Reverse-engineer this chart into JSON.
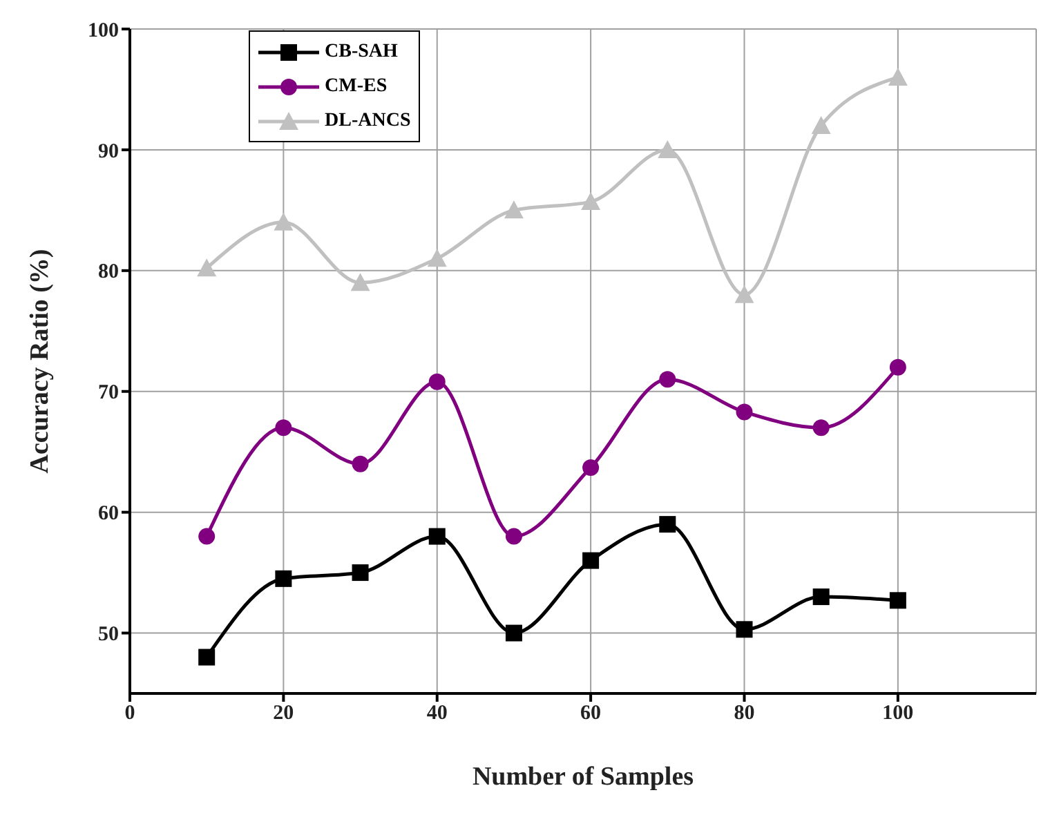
{
  "chart_data": {
    "type": "line",
    "xlabel": "Number of Samples",
    "ylabel": "Accuracy Ratio (%)",
    "x": [
      10,
      20,
      30,
      40,
      50,
      60,
      70,
      80,
      90,
      100
    ],
    "xlim": [
      0,
      118
    ],
    "xticks": [
      0,
      20,
      40,
      60,
      80,
      100
    ],
    "ylim": [
      45,
      100
    ],
    "yticks": [
      50,
      60,
      70,
      80,
      90,
      100
    ],
    "grid": true,
    "legend": "top left",
    "series": [
      {
        "name": "CB-SAH",
        "color": "#000000",
        "marker": "square",
        "values": [
          48,
          54.5,
          55,
          58,
          50,
          56,
          59,
          50.3,
          53,
          52.7
        ]
      },
      {
        "name": "CM-ES",
        "color": "#800080",
        "marker": "circle",
        "values": [
          58,
          67,
          64,
          70.8,
          58,
          63.7,
          71,
          68.3,
          67,
          72
        ]
      },
      {
        "name": "DL-ANCS",
        "color": "#c0c0c0",
        "marker": "triangle",
        "values": [
          80.2,
          84,
          79,
          81,
          85,
          85.7,
          90,
          78,
          92,
          96
        ]
      }
    ]
  }
}
